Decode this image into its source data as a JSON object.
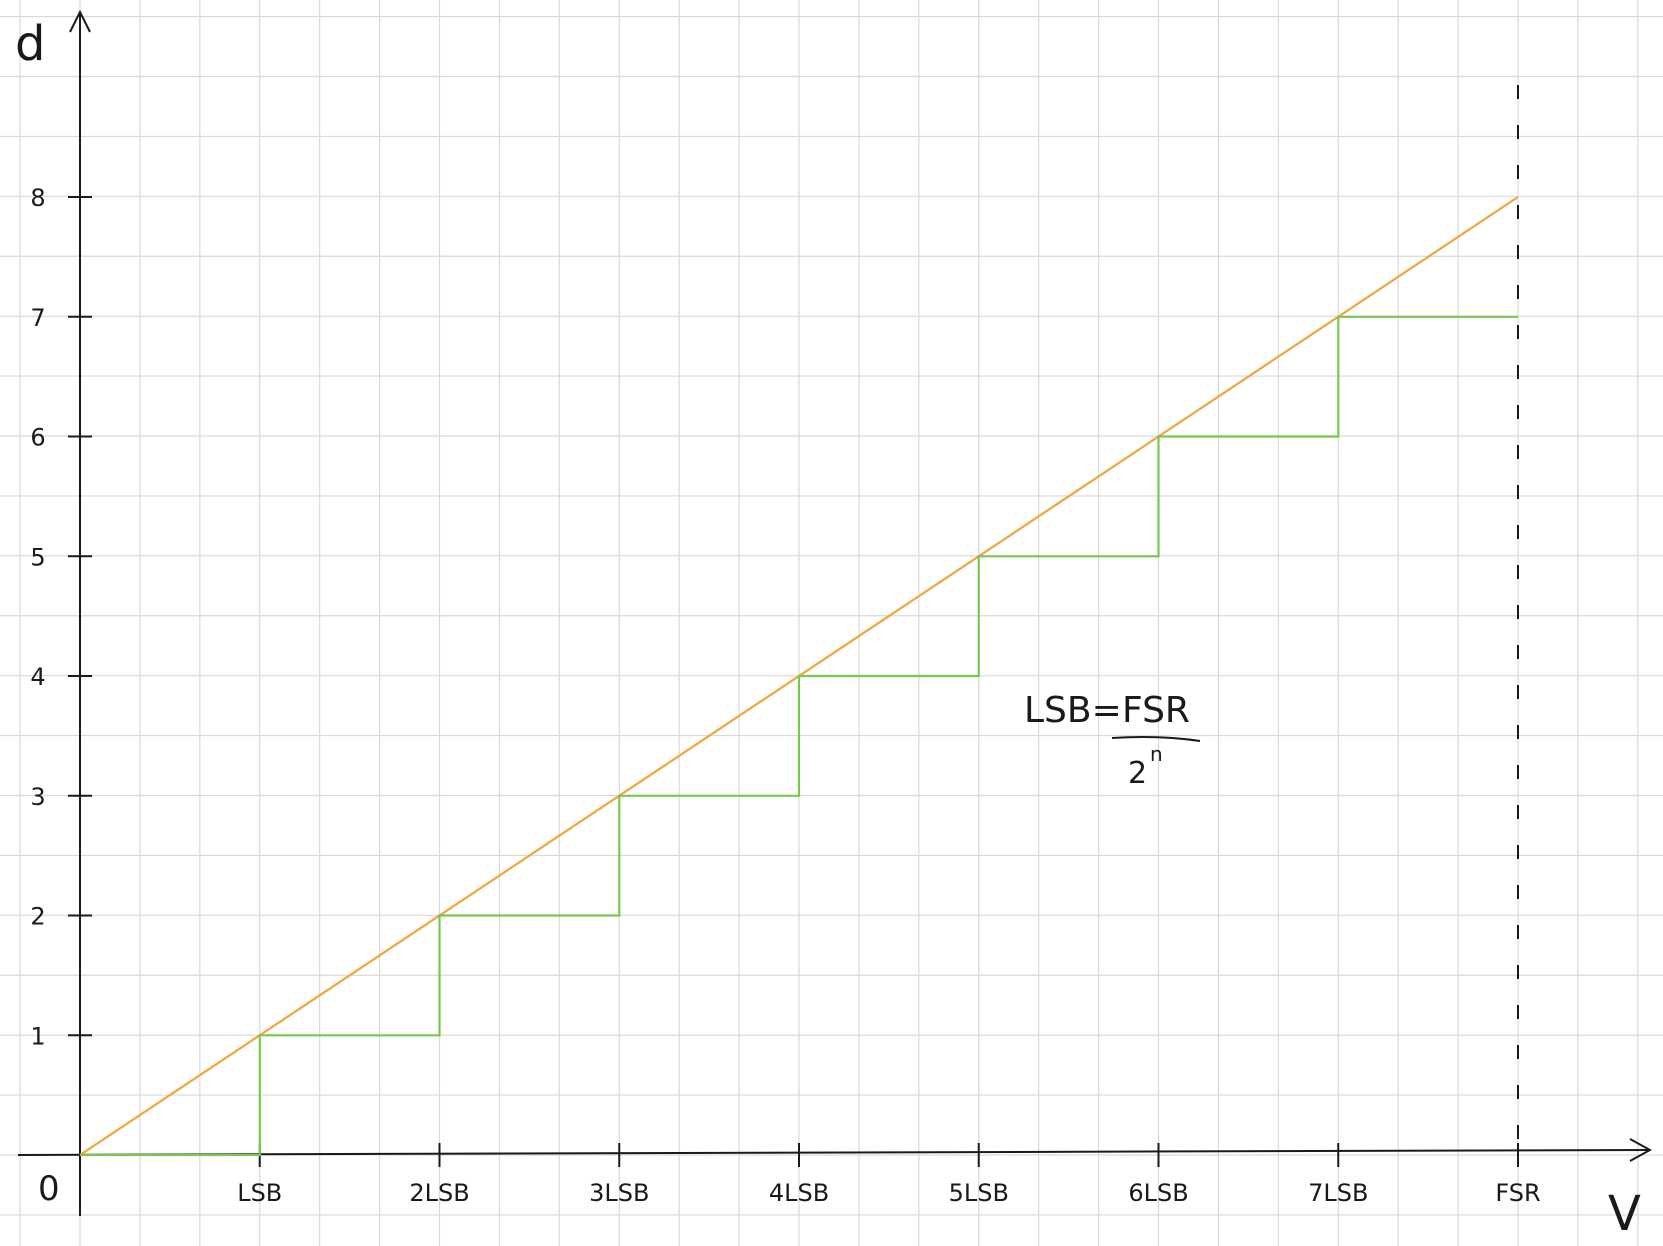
{
  "chart_data": {
    "type": "line",
    "title": "",
    "xlabel": "V",
    "ylabel": "d",
    "origin_label": "0",
    "xlim": [
      0,
      8
    ],
    "ylim": [
      0,
      8
    ],
    "grid": true,
    "x_tick_labels": [
      "LSB",
      "2LSB",
      "3LSB",
      "4LSB",
      "5LSB",
      "6LSB",
      "7LSB",
      "FSR"
    ],
    "y_tick_labels": [
      "1",
      "2",
      "3",
      "4",
      "5",
      "6",
      "7",
      "8"
    ],
    "series": [
      {
        "style": "line",
        "color": "#f2a53a",
        "x": [
          0,
          8
        ],
        "y": [
          0,
          8
        ]
      },
      {
        "style": "step",
        "color": "#78c850",
        "x": [
          0,
          1,
          1,
          2,
          2,
          3,
          3,
          4,
          4,
          5,
          5,
          6,
          6,
          7,
          7,
          8
        ],
        "y": [
          0,
          0,
          1,
          1,
          2,
          2,
          3,
          3,
          4,
          4,
          5,
          5,
          6,
          6,
          7,
          7
        ]
      }
    ],
    "reference_lines": [
      {
        "axis": "x",
        "value": 8,
        "style": "dashed"
      }
    ],
    "annotations": [
      {
        "lhs": "LSB=",
        "numerator": "FSR",
        "denominator": "2",
        "exponent": "n"
      }
    ]
  }
}
